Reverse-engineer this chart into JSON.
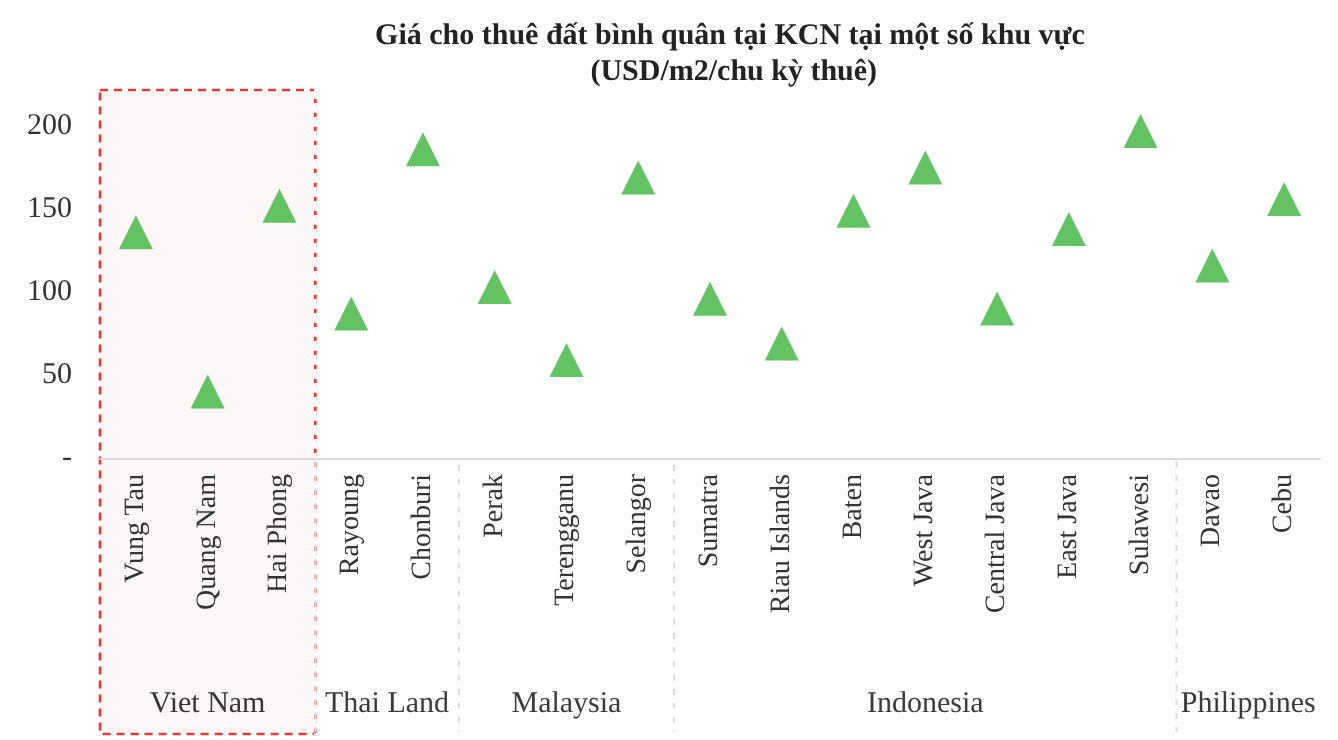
{
  "chart_data": {
    "type": "scatter",
    "title": "Giá cho thuê đất bình quân tại KCN tại một số khu vực (USD/m2/chu kỳ thuê)",
    "categories": [
      "Vung Tau",
      "Quang Nam",
      "Hai Phong",
      "Rayoung",
      "Chonburi",
      "Perak",
      "Terengganu",
      "Selangor",
      "Sumatra",
      "Riau Islands",
      "Baten",
      "West Java",
      "Central Java",
      "East Java",
      "Sulawesi",
      "Davao",
      "Cebu"
    ],
    "series": [
      {
        "color": "#3cb43c",
        "values": [
          136,
          40,
          152,
          87,
          186,
          103,
          59,
          169,
          96,
          69,
          149,
          175,
          90,
          138,
          197,
          116,
          156
        ]
      }
    ],
    "marker": "triangle",
    "grid": false,
    "ylim": [
      0,
      200
    ],
    "yticks": [
      {
        "value": 0,
        "label": "-"
      },
      50,
      100,
      150,
      200
    ],
    "bands": [
      {
        "axis": "x",
        "from": "Vung Tau",
        "to": "Hai Phong",
        "label": "Viet Nam",
        "color": "#e03a3a"
      },
      {
        "axis": "x",
        "from": "Rayoung",
        "to": "Chonburi",
        "label": "Thai Land",
        "color": "#ffffff"
      },
      {
        "axis": "x",
        "from": "Perak",
        "to": "Selangor",
        "label": "Malaysia",
        "color": "#ffffff"
      },
      {
        "axis": "x",
        "from": "Sumatra",
        "to": "Sulawesi",
        "label": "Indonesia",
        "color": "#ffffff"
      },
      {
        "axis": "x",
        "from": "Davao",
        "to": "Cebu",
        "label": "Philippines",
        "color": "#ffffff"
      }
    ]
  }
}
